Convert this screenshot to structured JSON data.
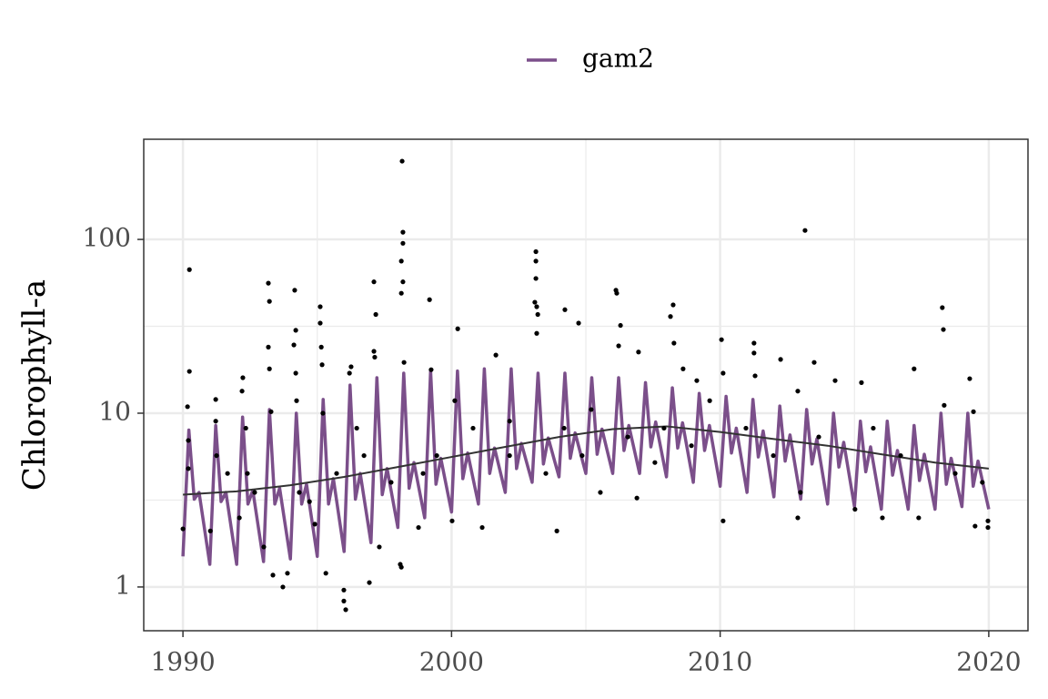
{
  "chart_data": {
    "type": "line",
    "y_label": "Chlorophyll-a",
    "log_y": true,
    "grid": true,
    "legend": "top",
    "xlim": [
      1988.54,
      2021.46
    ],
    "ylim": [
      0.56,
      377
    ],
    "xticks": [
      1990,
      2000,
      2010,
      2020
    ],
    "yticks": [
      1,
      10,
      100
    ],
    "x_minor_ticks": [
      1995,
      2005,
      2015
    ],
    "y_minor_ticks": [
      3.162,
      31.62
    ],
    "series": [
      {
        "name": "gam2",
        "color": "#7b4f8a",
        "x": [
          1990,
          1990.22,
          1990.42,
          1990.6,
          1991,
          1991.22,
          1991.42,
          1991.6,
          1992,
          1992.22,
          1992.42,
          1992.6,
          1993,
          1993.22,
          1993.42,
          1993.6,
          1994,
          1994.22,
          1994.42,
          1994.6,
          1995,
          1995.22,
          1995.42,
          1995.6,
          1996,
          1996.22,
          1996.42,
          1996.6,
          1997,
          1997.22,
          1997.42,
          1997.6,
          1998,
          1998.22,
          1998.42,
          1998.6,
          1999,
          1999.22,
          1999.42,
          1999.6,
          2000,
          2000.22,
          2000.42,
          2000.6,
          2001,
          2001.22,
          2001.42,
          2001.6,
          2002,
          2002.22,
          2002.42,
          2002.6,
          2003,
          2003.22,
          2003.42,
          2003.6,
          2004,
          2004.22,
          2004.42,
          2004.6,
          2005,
          2005.22,
          2005.42,
          2005.6,
          2006,
          2006.22,
          2006.42,
          2006.6,
          2007,
          2007.22,
          2007.42,
          2007.6,
          2008,
          2008.22,
          2008.42,
          2008.6,
          2009,
          2009.22,
          2009.42,
          2009.6,
          2010,
          2010.22,
          2010.42,
          2010.6,
          2011,
          2011.22,
          2011.42,
          2011.6,
          2012,
          2012.22,
          2012.42,
          2012.6,
          2013,
          2013.22,
          2013.42,
          2013.6,
          2014,
          2014.22,
          2014.42,
          2014.6,
          2015,
          2015.22,
          2015.42,
          2015.6,
          2016,
          2016.22,
          2016.42,
          2016.6,
          2017,
          2017.22,
          2017.42,
          2017.6,
          2018,
          2018.22,
          2018.42,
          2018.6,
          2019,
          2019.22,
          2019.42,
          2019.6,
          2020
        ],
        "values": [
          1.5,
          8,
          3.2,
          3.5,
          1.35,
          8.5,
          3.1,
          3.5,
          1.35,
          9.5,
          3.0,
          3.6,
          1.4,
          10.5,
          3.0,
          3.7,
          1.45,
          10,
          3.0,
          3.9,
          1.5,
          12,
          3.0,
          4.2,
          1.6,
          14.5,
          3.2,
          4.5,
          1.8,
          16,
          3.4,
          4.8,
          2.2,
          17,
          3.7,
          5.2,
          2.5,
          17.5,
          3.9,
          5.5,
          2.7,
          17.5,
          4.2,
          5.9,
          3.0,
          18,
          4.5,
          6.3,
          3.5,
          18,
          4.8,
          6.7,
          4.0,
          17,
          5.1,
          7.2,
          4.3,
          17,
          5.5,
          7.7,
          4.5,
          16,
          5.8,
          8.1,
          4.5,
          16,
          6.1,
          8.5,
          4.5,
          15,
          6.4,
          8.9,
          4.3,
          14,
          6.3,
          8.8,
          4.0,
          13,
          6.1,
          8.5,
          3.8,
          12.5,
          5.9,
          8.2,
          3.5,
          12,
          5.6,
          7.9,
          3.3,
          11,
          5.3,
          7.5,
          3.2,
          10.5,
          5.1,
          7.1,
          3.0,
          10,
          4.9,
          6.8,
          2.9,
          9,
          4.6,
          6.4,
          2.8,
          9,
          4.4,
          6.1,
          2.8,
          8.5,
          4.1,
          5.8,
          2.8,
          10,
          3.9,
          5.5,
          2.9,
          10,
          3.8,
          5.3,
          2.8
        ]
      }
    ],
    "trend": {
      "color": "#333333",
      "x": [
        1990,
        1992,
        1994,
        1996,
        1998,
        2000,
        2002,
        2004,
        2006,
        2008,
        2010,
        2012,
        2014,
        2016,
        2018,
        2020
      ],
      "values": [
        3.4,
        3.55,
        3.85,
        4.3,
        4.9,
        5.6,
        6.4,
        7.3,
        8.1,
        8.4,
        7.8,
        7.1,
        6.5,
        5.8,
        5.2,
        4.8
      ]
    },
    "points": {
      "color": "#000000",
      "x": [
        1990.0,
        1990.2,
        1990.17,
        1990.24,
        1990.24,
        1990.2,
        1991.22,
        1991.22,
        1991.25,
        1991.02,
        1992.23,
        1992.2,
        1992.34,
        1992.4,
        1992.1,
        1993.18,
        1993.22,
        1993.18,
        1993.22,
        1993.28,
        1993.01,
        1993.35,
        1994.13,
        1994.16,
        1994.2,
        1994.2,
        1994.23,
        1994.33,
        1993.72,
        1993.89,
        1995.11,
        1995.11,
        1995.15,
        1995.18,
        1995.21,
        1994.91,
        1995.32,
        1995.99,
        1995.99,
        1996.06,
        1996.26,
        1996.2,
        1996.47,
        1997.11,
        1997.18,
        1997.11,
        1997.14,
        1996.94,
        1997.31,
        1998.16,
        1998.19,
        1998.19,
        1998.13,
        1998.19,
        1998.13,
        1998.23,
        1998.09,
        1998.13,
        1999.18,
        1999.24,
        1998.77,
        1998.94,
        2000.23,
        2000.12,
        2000.02,
        2001.14,
        2001.65,
        2002.16,
        2003.1,
        2003.14,
        2003.14,
        2003.14,
        2003.17,
        2003.21,
        2003.17,
        2004.22,
        2004.73,
        2003.92,
        2005.2,
        2006.12,
        2006.15,
        2006.29,
        2006.22,
        2006.96,
        2006.9,
        2008.25,
        2008.15,
        2008.28,
        2008.62,
        2009.13,
        2010.05,
        2010.11,
        2010.11,
        2011.26,
        2011.26,
        2011.3,
        2012.25,
        2013.16,
        2012.89,
        2012.89,
        2013.5,
        2014.28,
        2015.26,
        2017.22,
        2018.27,
        2018.31,
        2018.34,
        2019.29,
        2019.43,
        2019.49,
        2019.97,
        2019.97,
        2017.39,
        2016.04,
        2015.02,
        2012.99,
        2007.57,
        2008.93,
        2010.96,
        2011.98,
        2013.67,
        2015.7,
        2016.72,
        2018.75,
        2019.76,
        2004.19,
        2003.51,
        2002.16,
        2000.8,
        1999.45,
        1997.75,
        1996.74,
        1995.72,
        1994.71,
        1992.67,
        1991.66,
        2006.56,
        2007.91,
        2009.61,
        2004.86,
        2005.54
      ],
      "values": [
        2.16,
        6.97,
        10.9,
        67,
        17.4,
        4.8,
        12,
        9,
        5.7,
        2.1,
        16,
        13.4,
        8.2,
        4.5,
        2.5,
        56,
        44,
        24,
        18,
        10.2,
        1.7,
        1.17,
        24.7,
        51,
        30,
        17,
        11.8,
        3.5,
        1,
        1.2,
        41,
        33,
        24,
        19,
        10,
        2.3,
        1.2,
        0.96,
        0.83,
        0.74,
        18.5,
        17,
        8.2,
        57,
        37,
        22.7,
        21,
        1.06,
        1.7,
        282,
        110,
        95,
        75,
        57,
        49,
        19.6,
        1.35,
        1.3,
        45,
        17.8,
        2.2,
        4.5,
        30.6,
        11.8,
        2.4,
        2.2,
        21.6,
        9,
        43.5,
        85,
        75,
        59.6,
        41,
        37,
        28.8,
        39.4,
        33,
        2.1,
        10.5,
        51,
        49,
        32,
        24.4,
        22.5,
        3.25,
        42,
        36,
        25.3,
        18,
        15.4,
        26.5,
        17,
        2.4,
        25.3,
        22.2,
        16.4,
        20.4,
        112.6,
        13.4,
        2.5,
        19.6,
        15.4,
        15,
        18,
        40.5,
        30.3,
        11.1,
        15.8,
        10.2,
        2.24,
        2.4,
        2.2,
        2.5,
        2.5,
        2.8,
        3.5,
        5.2,
        6.5,
        8.2,
        5.7,
        7.3,
        8.2,
        5.7,
        4.5,
        4,
        8.2,
        4.5,
        5.7,
        8.2,
        5.7,
        4,
        5.7,
        4.5,
        3.1,
        3.5,
        4.5,
        7.3,
        8.2,
        11.8,
        5.7,
        3.5
      ]
    }
  }
}
